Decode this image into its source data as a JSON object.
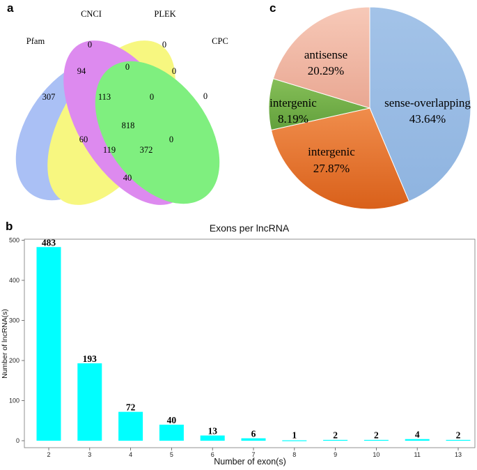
{
  "panels": {
    "a": "a",
    "b": "b",
    "c": "c"
  },
  "chart_data": [
    {
      "type": "venn",
      "sets": [
        "Pfam",
        "CNCI",
        "PLEK",
        "CPC"
      ],
      "colors": {
        "Pfam": "#7fa0f0",
        "CNCI": "#f4f440",
        "PLEK": "#cc4ee8",
        "CPC": "#3ee83e"
      },
      "regions": [
        {
          "sets": [
            "Pfam"
          ],
          "value": 307
        },
        {
          "sets": [
            "CNCI"
          ],
          "value": 0
        },
        {
          "sets": [
            "PLEK"
          ],
          "value": 0
        },
        {
          "sets": [
            "CPC"
          ],
          "value": 0
        },
        {
          "sets": [
            "Pfam",
            "CNCI"
          ],
          "value": 94
        },
        {
          "sets": [
            "CNCI",
            "PLEK"
          ],
          "value": 0
        },
        {
          "sets": [
            "PLEK",
            "CPC"
          ],
          "value": 0
        },
        {
          "sets": [
            "Pfam",
            "PLEK"
          ],
          "value": 60
        },
        {
          "sets": [
            "Pfam",
            "CPC"
          ],
          "value": 40
        },
        {
          "sets": [
            "CNCI",
            "CPC"
          ],
          "value": 0
        },
        {
          "sets": [
            "Pfam",
            "CNCI",
            "PLEK"
          ],
          "value": 113
        },
        {
          "sets": [
            "CNCI",
            "PLEK",
            "CPC"
          ],
          "value": 0
        },
        {
          "sets": [
            "Pfam",
            "PLEK",
            "CPC"
          ],
          "value": 119
        },
        {
          "sets": [
            "Pfam",
            "CNCI",
            "CPC"
          ],
          "value": 372
        },
        {
          "sets": [
            "Pfam",
            "CNCI",
            "PLEK",
            "CPC"
          ],
          "value": 818
        }
      ]
    },
    {
      "type": "bar",
      "title": "Exons per lncRNA",
      "xlabel": "Number of exon(s)",
      "ylabel": "Number of lncRNA(s)",
      "categories": [
        "2",
        "3",
        "4",
        "5",
        "6",
        "7",
        "8",
        "9",
        "10",
        "11",
        "13"
      ],
      "values": [
        483,
        193,
        72,
        40,
        13,
        6,
        1,
        2,
        2,
        4,
        2
      ],
      "ylim": [
        0,
        510
      ],
      "yticks": [
        0,
        100,
        200,
        300,
        400,
        500
      ],
      "bar_color": "#00ffff"
    },
    {
      "type": "pie",
      "slices": [
        {
          "label": "sense-overlapping",
          "value": 43.64,
          "display": "43.64%",
          "color_top": "#a3c3e8",
          "color_bottom": "#8fb4e0"
        },
        {
          "label": "intergenic",
          "value": 27.87,
          "display": "27.87%",
          "color_top": "#f08d4c",
          "color_bottom": "#d9601a"
        },
        {
          "label": "intergenic",
          "value": 8.19,
          "display": "8.19%",
          "color_top": "#86bf58",
          "color_bottom": "#62a03c"
        },
        {
          "label": "antisense",
          "value": 20.29,
          "display": "20.29%",
          "color_top": "#f7c9b8",
          "color_bottom": "#e9a792"
        }
      ]
    }
  ]
}
